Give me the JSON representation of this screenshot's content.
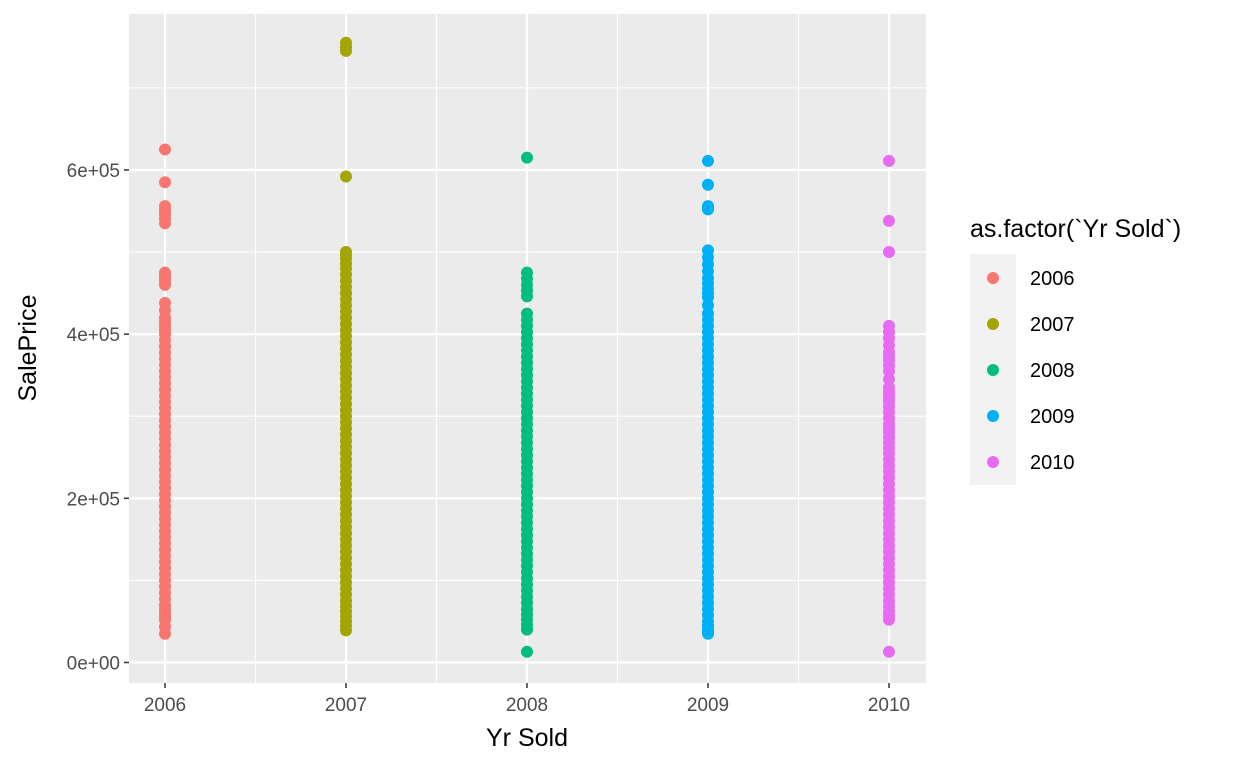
{
  "chart_data": {
    "type": "scatter",
    "xlabel": "Yr Sold",
    "ylabel": "SalePrice",
    "legend_title": "as.factor(`Yr Sold`)",
    "legend_position": "right",
    "grid": true,
    "x_ticks": [
      "2006",
      "2007",
      "2008",
      "2009",
      "2010"
    ],
    "y_ticks": [
      {
        "value": 0,
        "label": "0e+00"
      },
      {
        "value": 200000,
        "label": "2e+05"
      },
      {
        "value": 400000,
        "label": "4e+05"
      },
      {
        "value": 600000,
        "label": "6e+05"
      }
    ],
    "ylim": [
      -25000,
      790000
    ],
    "series": [
      {
        "name": "2006",
        "x": 2006,
        "color": "#F8766D",
        "values": [
          625000,
          585000,
          556000,
          546000,
          535000,
          475000,
          468000,
          460000,
          438000,
          420000,
          410000,
          400000,
          385000,
          370000,
          355000,
          340000,
          325000,
          310000,
          295000,
          280000,
          265000,
          250000,
          235000,
          220000,
          205000,
          190000,
          175000,
          160000,
          145000,
          130000,
          115000,
          100000,
          85000,
          70000,
          60000,
          52000,
          35000
        ]
      },
      {
        "name": "2007",
        "x": 2007,
        "color": "#A3A500",
        "values": [
          755000,
          745000,
          592000,
          500000,
          492000,
          480000,
          465000,
          450000,
          435000,
          420000,
          405000,
          390000,
          375000,
          360000,
          345000,
          330000,
          315000,
          300000,
          285000,
          270000,
          255000,
          240000,
          225000,
          210000,
          195000,
          180000,
          165000,
          150000,
          135000,
          120000,
          105000,
          90000,
          75000,
          62000,
          50000,
          39000
        ]
      },
      {
        "name": "2008",
        "x": 2008,
        "color": "#00BF7D",
        "values": [
          615000,
          475000,
          460000,
          446000,
          425000,
          410000,
          395000,
          380000,
          365000,
          350000,
          335000,
          320000,
          305000,
          290000,
          275000,
          260000,
          245000,
          230000,
          215000,
          200000,
          185000,
          170000,
          155000,
          140000,
          125000,
          110000,
          95000,
          80000,
          65000,
          52000,
          40000,
          13000
        ]
      },
      {
        "name": "2009",
        "x": 2009,
        "color": "#00B0F6",
        "values": [
          611000,
          582000,
          556000,
          552000,
          502000,
          485000,
          468000,
          455000,
          445000,
          425000,
          410000,
          395000,
          380000,
          365000,
          350000,
          335000,
          320000,
          305000,
          290000,
          275000,
          260000,
          245000,
          230000,
          215000,
          200000,
          185000,
          170000,
          155000,
          140000,
          125000,
          110000,
          95000,
          80000,
          65000,
          50000,
          40000,
          35000
        ]
      },
      {
        "name": "2010",
        "x": 2010,
        "color": "#E76BF3",
        "values": [
          611000,
          538000,
          500000,
          410000,
          395000,
          378000,
          368000,
          355000,
          335000,
          325000,
          318000,
          305000,
          290000,
          280000,
          268000,
          255000,
          240000,
          225000,
          210000,
          195000,
          180000,
          165000,
          150000,
          135000,
          120000,
          105000,
          90000,
          75000,
          62000,
          52000,
          13000
        ]
      }
    ]
  }
}
